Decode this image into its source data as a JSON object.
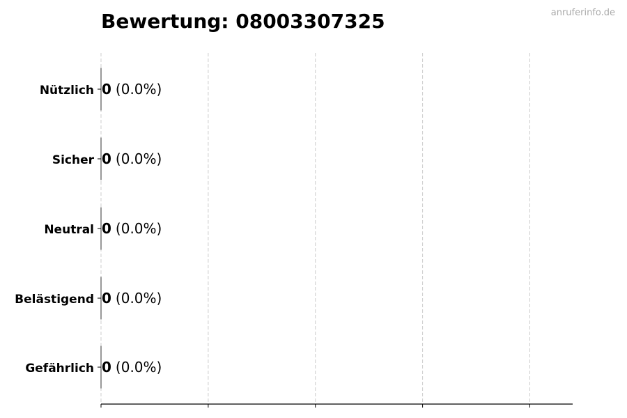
{
  "watermark": "anruferinfo.de",
  "chart_data": {
    "type": "bar",
    "orientation": "horizontal",
    "title": "Bewertung: 08003307325",
    "categories": [
      "Nützlich",
      "Sicher",
      "Neutral",
      "Belästigend",
      "Gefährlich"
    ],
    "values": [
      0,
      0,
      0,
      0,
      0
    ],
    "data_labels": [
      {
        "count": "0",
        "percent": "(0.0%)"
      },
      {
        "count": "0",
        "percent": "(0.0%)"
      },
      {
        "count": "0",
        "percent": "(0.0%)"
      },
      {
        "count": "0",
        "percent": "(0.0%)"
      },
      {
        "count": "0",
        "percent": "(0.0%)"
      }
    ],
    "xlabel": "",
    "ylabel": "",
    "xlim": [
      0,
      4.4
    ],
    "xticks": [
      0,
      1,
      2,
      3,
      4
    ],
    "xtick_labels_shown": false,
    "grid": "x-dashed",
    "colors": {
      "bar_edge": "#333333",
      "grid": "#cccccc",
      "watermark": "#aaaaaa"
    }
  }
}
